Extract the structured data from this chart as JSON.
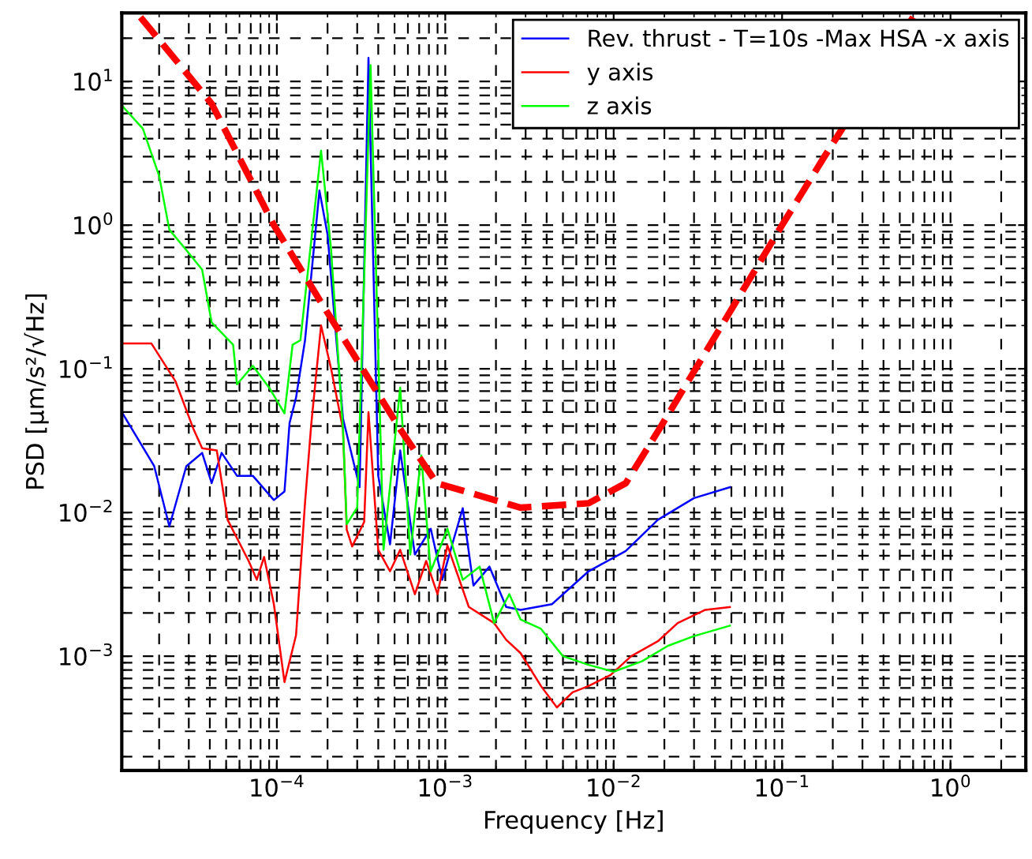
{
  "chart_data": {
    "type": "line",
    "xlabel": "Frequency [Hz]",
    "ylabel": "PSD [μm/s²/√Hz]",
    "log": "xy",
    "grid": true,
    "legend": "top right",
    "marker": "none",
    "xlim": [
      1.2e-05,
      2.8
    ],
    "ylim": [
      0.00016,
      30
    ],
    "xticks": [
      {
        "value": 0.0001,
        "label": "10$^{−4}$"
      },
      {
        "value": 0.001,
        "label": "10$^{−3}$"
      },
      {
        "value": 0.01,
        "label": "10$^{−2}$"
      },
      {
        "value": 0.1,
        "label": "10$^{−1}$"
      },
      {
        "value": 1,
        "label": "10$^{0}$"
      }
    ],
    "yticks": [
      {
        "value": 0.001,
        "label": "10$^{−3}$"
      },
      {
        "value": 0.01,
        "label": "10$^{−2}$"
      },
      {
        "value": 0.1,
        "label": "10$^{−1}$"
      },
      {
        "value": 1,
        "label": "10$^{0}$"
      },
      {
        "value": 10,
        "label": "10$^{1}$"
      }
    ],
    "series": [
      {
        "name": "Rev. thrust - T=10s -Max HSA -x axis",
        "color": "#0000ff",
        "line_style": "solid",
        "x": [
          1.2e-05,
          1.87e-05,
          2.3e-05,
          2.9e-05,
          3.6e-05,
          4.1e-05,
          4.7e-05,
          5.8e-05,
          7.2e-05,
          9.6e-05,
          0.000111,
          0.000119,
          0.00013,
          0.000147,
          0.000179,
          0.0002,
          0.000247,
          0.00031,
          0.00035,
          0.0004,
          0.00047,
          0.00054,
          0.00066,
          0.00082,
          0.00096,
          0.0011,
          0.00127,
          0.00147,
          0.00183,
          0.0023,
          0.0028,
          0.0043,
          0.0071,
          0.0118,
          0.0183,
          0.03,
          0.049
        ],
        "values": [
          0.05,
          0.021,
          0.008,
          0.021,
          0.026,
          0.016,
          0.026,
          0.018,
          0.018,
          0.0122,
          0.014,
          0.042,
          0.063,
          0.158,
          1.74,
          0.86,
          0.045,
          0.015,
          14.6,
          0.018,
          0.006,
          0.027,
          0.0051,
          0.0077,
          0.0034,
          0.006,
          0.0107,
          0.0031,
          0.0042,
          0.0022,
          0.0021,
          0.0023,
          0.0039,
          0.0054,
          0.0089,
          0.0126,
          0.015
        ]
      },
      {
        "name": "y axis",
        "color": "#ff0000",
        "line_style": "solid",
        "x": [
          1.2e-05,
          1.8e-05,
          2.5e-05,
          3.2e-05,
          3.6e-05,
          4.4e-05,
          5.1e-05,
          6.8e-05,
          7.6e-05,
          8.4e-05,
          9.6e-05,
          0.000111,
          0.00013,
          0.000147,
          0.00016,
          0.000183,
          0.00021,
          0.000247,
          0.00026,
          0.00028,
          0.00033,
          0.00035,
          0.0004,
          0.00047,
          0.00054,
          0.00066,
          0.00077,
          0.0009,
          0.00103,
          0.00138,
          0.00195,
          0.0023,
          0.0028,
          0.0037,
          0.0046,
          0.0057,
          0.0071,
          0.0096,
          0.0127,
          0.0183,
          0.024,
          0.035,
          0.049
        ],
        "values": [
          0.15,
          0.15,
          0.082,
          0.038,
          0.028,
          0.027,
          0.0089,
          0.0046,
          0.0034,
          0.0049,
          0.0023,
          0.00066,
          0.0014,
          0.0117,
          0.041,
          0.2,
          0.1,
          0.038,
          0.0076,
          0.0058,
          0.0086,
          0.05,
          0.0055,
          0.0039,
          0.0055,
          0.0027,
          0.0046,
          0.0027,
          0.0059,
          0.0022,
          0.0017,
          0.0013,
          0.00105,
          0.00062,
          0.00044,
          0.00056,
          0.00062,
          0.00074,
          0.001,
          0.00127,
          0.0017,
          0.0021,
          0.0022
        ]
      },
      {
        "name": "z axis",
        "color": "#00ff00",
        "line_style": "solid",
        "x": [
          1.2e-05,
          1.6e-05,
          2e-05,
          2.3e-05,
          2.9e-05,
          3.6e-05,
          4.1e-05,
          5.5e-05,
          5.8e-05,
          7.2e-05,
          9e-05,
          0.000111,
          0.000124,
          0.000138,
          0.000183,
          0.00021,
          0.000247,
          0.00026,
          0.0003,
          0.00036,
          0.00043,
          0.00054,
          0.00062,
          0.00072,
          0.00082,
          0.00103,
          0.00127,
          0.0016,
          0.00195,
          0.0024,
          0.0028,
          0.0037,
          0.005,
          0.0071,
          0.01,
          0.0147,
          0.021,
          0.03,
          0.049
        ],
        "values": [
          6.8,
          4.7,
          2.2,
          0.93,
          0.67,
          0.49,
          0.21,
          0.147,
          0.078,
          0.105,
          0.074,
          0.049,
          0.147,
          0.158,
          3.3,
          0.67,
          0.038,
          0.0083,
          0.0108,
          13,
          0.0055,
          0.074,
          0.0051,
          0.025,
          0.0039,
          0.0077,
          0.0034,
          0.0042,
          0.0017,
          0.0027,
          0.0018,
          0.00155,
          0.001,
          0.00087,
          0.00078,
          0.00092,
          0.00118,
          0.00138,
          0.00163
        ]
      },
      {
        "color": "#ff0000",
        "line_style": "dashed",
        "x": [
          1.55e-05,
          4.1e-05,
          9.6e-05,
          0.000183,
          0.00054,
          0.00089,
          0.0028,
          0.0071,
          0.0118,
          0.0194,
          0.1,
          0.18,
          0.6
        ],
        "values": [
          28,
          7.0,
          1.0,
          0.29,
          0.038,
          0.016,
          0.0108,
          0.0116,
          0.016,
          0.041,
          1.0,
          3.05,
          28
        ]
      }
    ]
  }
}
